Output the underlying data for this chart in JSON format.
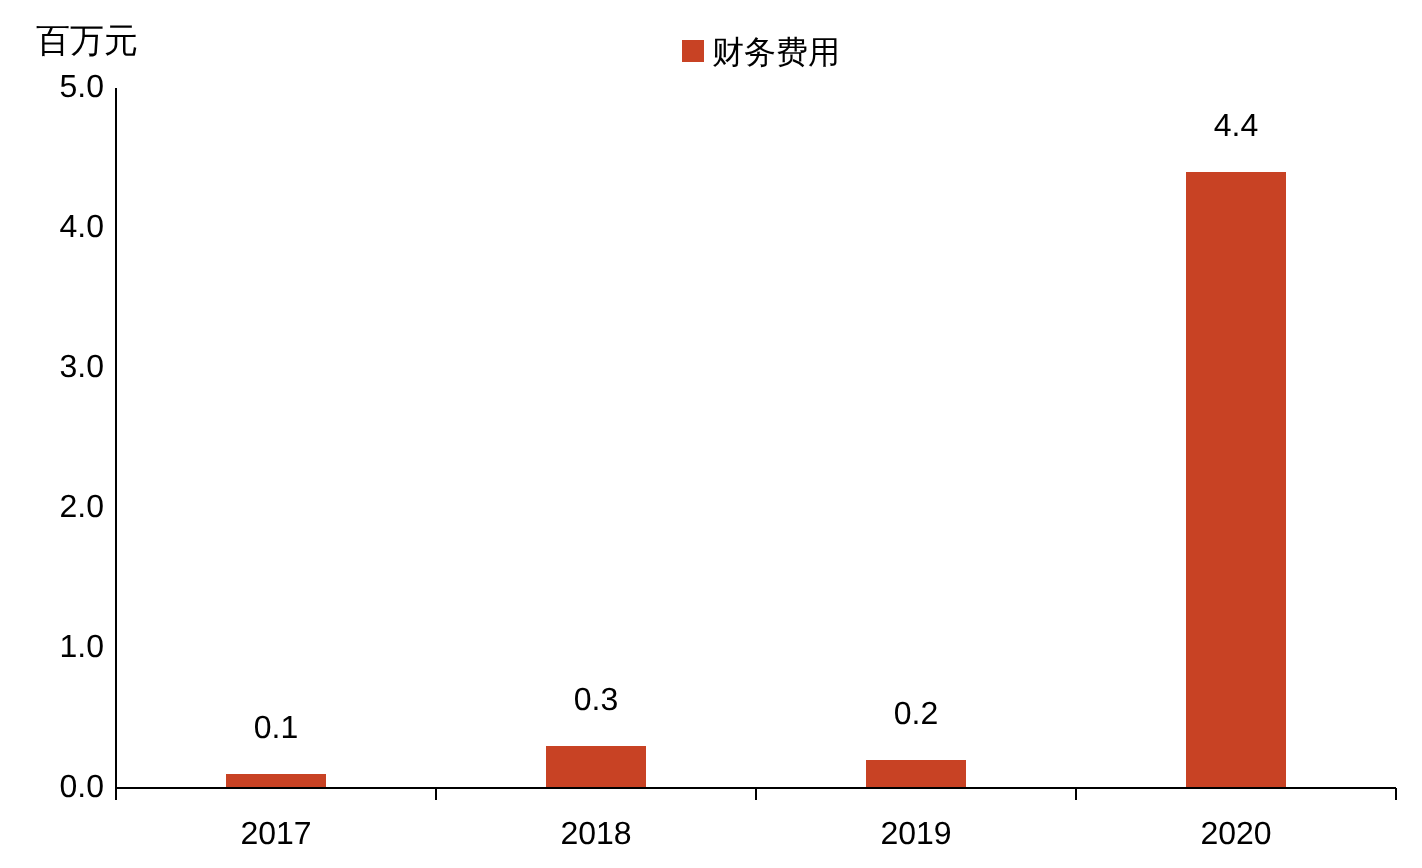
{
  "chart_data": {
    "type": "bar",
    "ylabel": "百万元",
    "categories": [
      "2017",
      "2018",
      "2019",
      "2020"
    ],
    "series": [
      {
        "name": "财务费用",
        "color": "#c84224",
        "values": [
          0.1,
          0.3,
          0.2,
          4.4
        ]
      }
    ],
    "ylim": [
      0,
      5
    ],
    "yticks": [
      {
        "value": 0,
        "label": "0.0"
      },
      {
        "value": 1,
        "label": "1.0"
      },
      {
        "value": 2,
        "label": "2.0"
      },
      {
        "value": 3,
        "label": "3.0"
      },
      {
        "value": 4,
        "label": "4.0"
      },
      {
        "value": 5,
        "label": "5.0"
      }
    ],
    "data_labels": true,
    "legend": "top",
    "grid": false
  }
}
